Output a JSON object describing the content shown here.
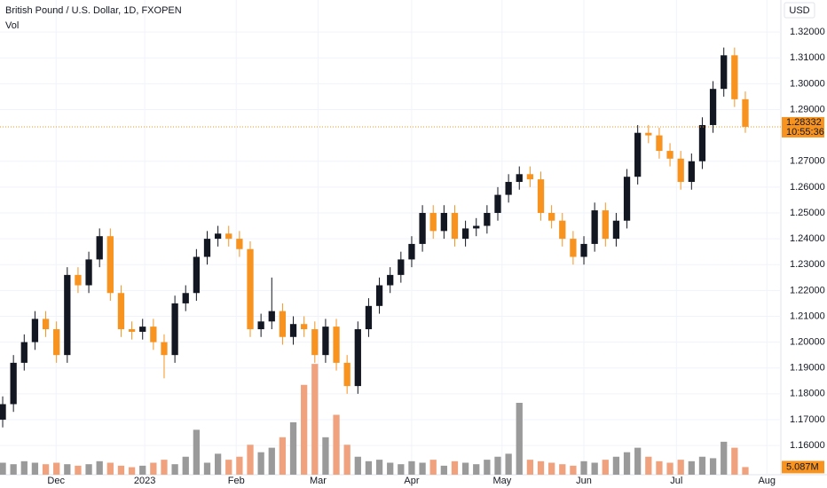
{
  "chart_data": {
    "type": "candlestick",
    "title": "British Pound / U.S. Dollar, 1D, FXOPEN",
    "volume_title": "Vol",
    "currency": "USD",
    "up_color": "#131722",
    "down_color": "#f7931e",
    "volume_up_color": "#9a9a9a",
    "volume_down_color": "#f0a27e",
    "grid": true,
    "xlim": [
      -0.25,
      72.3
    ],
    "xticks": [
      {
        "value": 4.96,
        "label": "Dec"
      },
      {
        "value": 13.2,
        "label": "2023"
      },
      {
        "value": 21.7,
        "label": "Feb"
      },
      {
        "value": 29.3,
        "label": "Mar"
      },
      {
        "value": 38.0,
        "label": "Apr"
      },
      {
        "value": 46.4,
        "label": "May"
      },
      {
        "value": 54.0,
        "label": "Jun"
      },
      {
        "value": 62.6,
        "label": "Jul"
      },
      {
        "value": 71.0,
        "label": "Aug"
      }
    ],
    "ylim": [
      1.1487,
      1.3324
    ],
    "yticks": [
      {
        "value": 1.16,
        "label": "1.16000"
      },
      {
        "value": 1.17,
        "label": "1.17000"
      },
      {
        "value": 1.18,
        "label": "1.18000"
      },
      {
        "value": 1.19,
        "label": "1.19000"
      },
      {
        "value": 1.2,
        "label": "1.20000"
      },
      {
        "value": 1.21,
        "label": "1.21000"
      },
      {
        "value": 1.22,
        "label": "1.22000"
      },
      {
        "value": 1.23,
        "label": "1.23000"
      },
      {
        "value": 1.24,
        "label": "1.24000"
      },
      {
        "value": 1.25,
        "label": "1.25000"
      },
      {
        "value": 1.26,
        "label": "1.26000"
      },
      {
        "value": 1.27,
        "label": "1.27000"
      },
      {
        "value": 1.29,
        "label": "1.29000"
      },
      {
        "value": 1.3,
        "label": "1.30000"
      },
      {
        "value": 1.31,
        "label": "1.31000"
      },
      {
        "value": 1.32,
        "label": "1.32000"
      }
    ],
    "open": [
      1.17,
      1.176,
      1.192,
      1.2,
      1.209,
      1.205,
      1.195,
      1.226,
      1.222,
      1.232,
      1.241,
      1.219,
      1.205,
      1.204,
      1.206,
      1.2,
      1.195,
      1.215,
      1.219,
      1.233,
      1.24,
      1.242,
      1.24,
      1.236,
      1.205,
      1.208,
      1.212,
      1.202,
      1.207,
      1.205,
      1.195,
      1.206,
      1.192,
      1.183,
      1.205,
      1.214,
      1.222,
      1.226,
      1.232,
      1.238,
      1.25,
      1.243,
      1.25,
      1.24,
      1.244,
      1.245,
      1.25,
      1.257,
      1.262,
      1.265,
      1.263,
      1.25,
      1.247,
      1.24,
      1.233,
      1.238,
      1.251,
      1.24,
      1.247,
      1.264,
      1.281,
      1.28,
      1.274,
      1.271,
      1.262,
      1.27,
      1.284,
      1.298,
      1.311,
      1.294
    ],
    "high": [
      1.179,
      1.195,
      1.203,
      1.212,
      1.212,
      1.208,
      1.229,
      1.229,
      1.235,
      1.244,
      1.244,
      1.222,
      1.208,
      1.209,
      1.209,
      1.203,
      1.218,
      1.222,
      1.236,
      1.243,
      1.245,
      1.245,
      1.243,
      1.239,
      1.211,
      1.225,
      1.215,
      1.21,
      1.21,
      1.208,
      1.209,
      1.209,
      1.195,
      1.208,
      1.217,
      1.225,
      1.229,
      1.235,
      1.241,
      1.253,
      1.253,
      1.253,
      1.253,
      1.247,
      1.248,
      1.253,
      1.26,
      1.265,
      1.268,
      1.268,
      1.266,
      1.253,
      1.25,
      1.243,
      1.241,
      1.254,
      1.254,
      1.25,
      1.267,
      1.284,
      1.284,
      1.283,
      1.277,
      1.274,
      1.273,
      1.287,
      1.301,
      1.314,
      1.314,
      1.297
    ],
    "low": [
      1.167,
      1.173,
      1.189,
      1.197,
      1.202,
      1.192,
      1.192,
      1.219,
      1.219,
      1.229,
      1.216,
      1.202,
      1.201,
      1.201,
      1.197,
      1.186,
      1.192,
      1.212,
      1.216,
      1.23,
      1.237,
      1.237,
      1.233,
      1.202,
      1.202,
      1.205,
      1.199,
      1.199,
      1.202,
      1.192,
      1.192,
      1.189,
      1.18,
      1.18,
      1.202,
      1.211,
      1.219,
      1.223,
      1.229,
      1.235,
      1.24,
      1.24,
      1.237,
      1.237,
      1.241,
      1.242,
      1.247,
      1.254,
      1.259,
      1.26,
      1.247,
      1.244,
      1.237,
      1.23,
      1.23,
      1.235,
      1.237,
      1.237,
      1.244,
      1.261,
      1.277,
      1.271,
      1.268,
      1.259,
      1.259,
      1.267,
      1.281,
      1.295,
      1.291,
      1.281
    ],
    "close": [
      1.176,
      1.192,
      1.2,
      1.209,
      1.205,
      1.195,
      1.226,
      1.222,
      1.232,
      1.241,
      1.219,
      1.205,
      1.204,
      1.206,
      1.2,
      1.195,
      1.215,
      1.219,
      1.233,
      1.24,
      1.242,
      1.24,
      1.236,
      1.205,
      1.208,
      1.212,
      1.202,
      1.207,
      1.205,
      1.195,
      1.206,
      1.192,
      1.183,
      1.205,
      1.214,
      1.222,
      1.226,
      1.232,
      1.238,
      1.25,
      1.243,
      1.25,
      1.24,
      1.244,
      1.245,
      1.25,
      1.257,
      1.262,
      1.265,
      1.263,
      1.25,
      1.247,
      1.24,
      1.233,
      1.238,
      1.251,
      1.24,
      1.247,
      1.264,
      1.281,
      1.28,
      1.274,
      1.271,
      1.262,
      1.27,
      1.284,
      1.298,
      1.311,
      1.294,
      1.28332
    ],
    "last_price_label": "1.28332",
    "countdown": "10:55:36",
    "volume": {
      "ylim": [
        0,
        80
      ],
      "values": [
        8,
        7,
        9,
        8,
        7,
        8,
        7,
        6,
        7,
        9,
        8,
        6,
        5,
        6,
        8,
        10,
        7,
        12,
        30,
        8,
        14,
        10,
        12,
        20,
        15,
        18,
        25,
        35,
        60,
        74,
        25,
        40,
        20,
        12,
        9,
        10,
        8,
        7,
        9,
        8,
        10,
        6,
        9,
        8,
        7,
        10,
        12,
        14,
        48,
        10,
        9,
        8,
        7,
        6,
        9,
        8,
        10,
        12,
        15,
        18,
        12,
        9,
        8,
        10,
        9,
        12,
        11,
        22,
        18,
        5.087
      ],
      "last_label": "5.087M"
    }
  }
}
